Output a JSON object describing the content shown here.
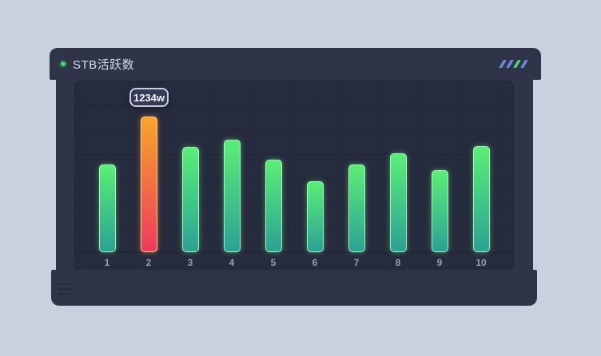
{
  "page": {
    "background": "#c8d2de"
  },
  "panel": {
    "background": "#303449",
    "header": {
      "title": "STB活跃数",
      "dot_color": "#3ddb70",
      "decor_slashes": [
        {
          "color": "#6c8bd4"
        },
        {
          "color": "#6c8bd4"
        },
        {
          "color": "#41d87a"
        },
        {
          "color": "#6c8bd4"
        }
      ]
    }
  },
  "tooltip": {
    "text": "1234w"
  },
  "chart_data": {
    "type": "bar",
    "title": "STB活跃数",
    "categories": [
      "1",
      "2",
      "3",
      "4",
      "5",
      "6",
      "7",
      "8",
      "9",
      "10"
    ],
    "values": [
      800,
      1234,
      959,
      1025,
      843,
      647,
      800,
      901,
      749,
      967
    ],
    "unit": "w",
    "highlight_index": 1,
    "highlight_label": "1234w",
    "xlabel": "",
    "ylabel": "",
    "ylim": [
      0,
      1570
    ],
    "grid": true,
    "legend": null,
    "colors": {
      "bar_gradient_top": "#5bee77",
      "bar_gradient_bottom": "#2ca195",
      "highlight_gradient_top": "#f7a42a",
      "highlight_gradient_bottom": "#ef3a5f",
      "gridline": "#1d2132",
      "axis_label": "#979eb4"
    }
  }
}
